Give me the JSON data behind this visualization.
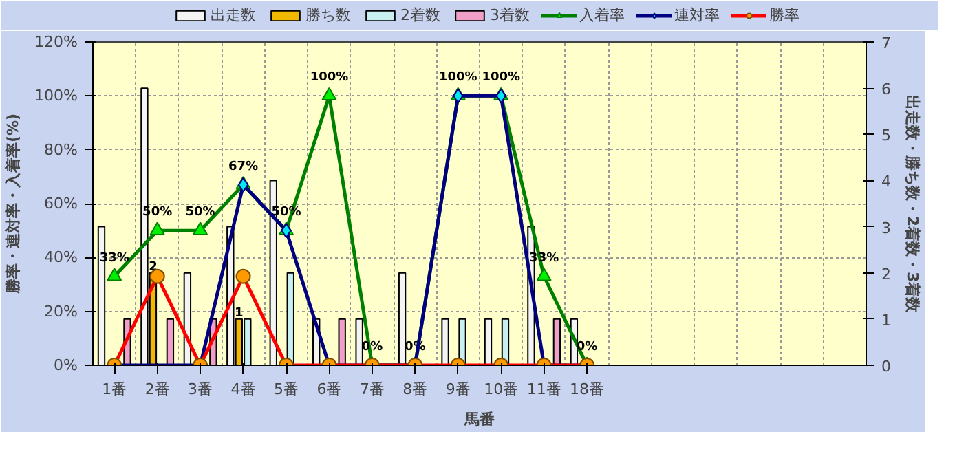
{
  "chart_data": {
    "type": "bar",
    "xlabel": "馬番",
    "ylabel": "勝率・連対率・入着率(%)",
    "y2label": "出走数・勝ち数・2着数・3着数",
    "categories": [
      "1番",
      "2番",
      "3番",
      "4番",
      "5番",
      "6番",
      "7番",
      "8番",
      "9番",
      "10番",
      "11番",
      "18番",
      null,
      null,
      null,
      null,
      null,
      null
    ],
    "ylim": [
      0,
      120
    ],
    "yticks": [
      {
        "value": 0,
        "label": "0%"
      },
      {
        "value": 20,
        "label": "20%"
      },
      {
        "value": 40,
        "label": "40%"
      },
      {
        "value": 60,
        "label": "60%"
      },
      {
        "value": 80,
        "label": "80%"
      },
      {
        "value": 100,
        "label": "100%"
      },
      {
        "value": 120,
        "label": "120%"
      }
    ],
    "y2lim": [
      0,
      7
    ],
    "y2ticks": [
      0,
      1,
      2,
      3,
      4,
      5,
      6,
      7
    ],
    "grid": true,
    "legend": "top",
    "series": [
      {
        "name": "出走数",
        "axis": "y2",
        "color": "#f4f4f4",
        "values": [
          3,
          6,
          2,
          3,
          4,
          1,
          1,
          2,
          1,
          1,
          3,
          1,
          null,
          null,
          null,
          null,
          null,
          null
        ]
      },
      {
        "name": "勝ち数",
        "axis": "y2",
        "color": "#f0b800",
        "values": [
          0,
          2,
          0,
          1,
          0,
          0,
          0,
          0,
          0,
          0,
          0,
          0,
          null,
          null,
          null,
          null,
          null,
          null
        ],
        "value_labels": [
          null,
          "2",
          null,
          "1",
          null,
          null,
          null,
          null,
          null,
          null,
          null,
          null,
          null,
          null,
          null,
          null,
          null,
          null
        ]
      },
      {
        "name": "2着数",
        "axis": "y2",
        "color": "#c8f0f0",
        "values": [
          0,
          0,
          0,
          1,
          2,
          0,
          0,
          0,
          1,
          1,
          0,
          0,
          null,
          null,
          null,
          null,
          null,
          null
        ]
      },
      {
        "name": "3着数",
        "axis": "y2",
        "color": "#f0a0c8",
        "values": [
          1,
          1,
          1,
          0,
          0,
          1,
          0,
          0,
          0,
          0,
          1,
          0,
          null,
          null,
          null,
          null,
          null,
          null
        ]
      },
      {
        "name": "入着率",
        "type": "line",
        "color": "#008000",
        "marker": "triangle",
        "line_style": "solid",
        "values": [
          33,
          50,
          50,
          67,
          50,
          100,
          0,
          0,
          100,
          100,
          33,
          0,
          null,
          null,
          null,
          null,
          null,
          null
        ],
        "value_labels": [
          "33%",
          "50%",
          "50%",
          "67%",
          "50%",
          "100%",
          "0%",
          "0%",
          "100%",
          "100%",
          "33%",
          "0%",
          null,
          null,
          null,
          null,
          null,
          null
        ]
      },
      {
        "name": "連対率",
        "type": "line",
        "color": "#000080",
        "marker": "diamond",
        "line_style": "solid",
        "values": [
          0,
          null,
          0,
          67,
          50,
          0,
          0,
          0,
          100,
          100,
          0,
          0,
          null,
          null,
          null,
          null,
          null,
          null
        ]
      },
      {
        "name": "勝率",
        "type": "line",
        "color": "#ff0000",
        "marker": "circle",
        "line_style": "solid",
        "values": [
          0,
          33,
          0,
          33,
          0,
          0,
          0,
          0,
          0,
          0,
          0,
          0,
          null,
          null,
          null,
          null,
          null,
          null
        ]
      }
    ]
  }
}
